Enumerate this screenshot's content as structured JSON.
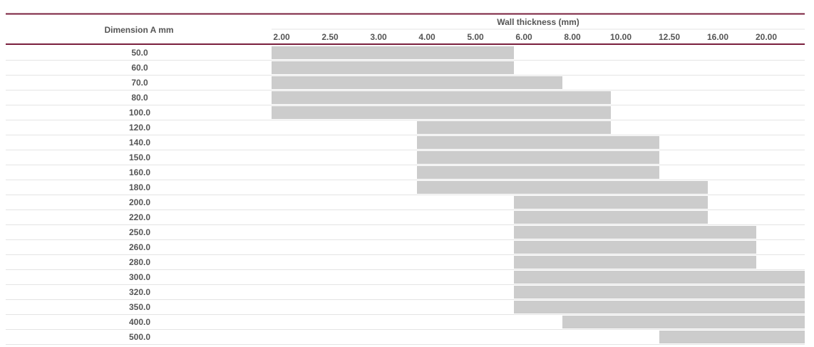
{
  "chart_data": {
    "type": "table",
    "row_header": "Dimension A mm",
    "column_header": "Wall thickness (mm)",
    "columns": [
      "2.00",
      "2.50",
      "3.00",
      "4.00",
      "5.00",
      "6.00",
      "8.00",
      "10.00",
      "12.50",
      "16.00",
      "20.00"
    ],
    "rows": [
      {
        "label": "50.0",
        "from": "2.00",
        "to": "5.00"
      },
      {
        "label": "60.0",
        "from": "2.00",
        "to": "5.00"
      },
      {
        "label": "70.0",
        "from": "2.00",
        "to": "6.00"
      },
      {
        "label": "80.0",
        "from": "2.00",
        "to": "8.00"
      },
      {
        "label": "100.0",
        "from": "2.00",
        "to": "8.00"
      },
      {
        "label": "120.0",
        "from": "4.00",
        "to": "8.00"
      },
      {
        "label": "140.0",
        "from": "4.00",
        "to": "10.00"
      },
      {
        "label": "150.0",
        "from": "4.00",
        "to": "10.00"
      },
      {
        "label": "160.0",
        "from": "4.00",
        "to": "10.00"
      },
      {
        "label": "180.0",
        "from": "4.00",
        "to": "12.50"
      },
      {
        "label": "200.0",
        "from": "6.00",
        "to": "12.50"
      },
      {
        "label": "220.0",
        "from": "6.00",
        "to": "12.50"
      },
      {
        "label": "250.0",
        "from": "6.00",
        "to": "16.00"
      },
      {
        "label": "260.0",
        "from": "6.00",
        "to": "16.00"
      },
      {
        "label": "280.0",
        "from": "6.00",
        "to": "16.00"
      },
      {
        "label": "300.0",
        "from": "6.00",
        "to": "20.00"
      },
      {
        "label": "320.0",
        "from": "6.00",
        "to": "20.00"
      },
      {
        "label": "350.0",
        "from": "6.00",
        "to": "20.00"
      },
      {
        "label": "400.0",
        "from": "8.00",
        "to": "20.00"
      },
      {
        "label": "500.0",
        "from": "12.50",
        "to": "20.00"
      }
    ],
    "colors": {
      "bar": "#cccccc",
      "rule": "#7a1f3d",
      "row_line": "#e4e4e4"
    }
  }
}
